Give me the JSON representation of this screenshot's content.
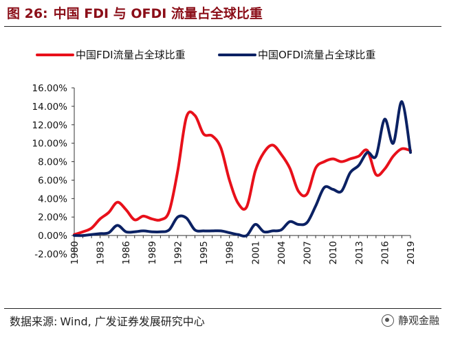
{
  "figure": {
    "label": "图 26:",
    "title": "中国 FDI 与 OFDI 流量占全球比重"
  },
  "source": {
    "prefix": "数据来源:",
    "text": "Wind, 广发证券发展研究中心"
  },
  "watermark": "静观金融",
  "colors": {
    "fdi": "#E8101A",
    "ofdi": "#0B2163",
    "title": "#8B0E18"
  },
  "chart_data": {
    "type": "line",
    "title": "中国 FDI 与 OFDI 流量占全球比重",
    "xlabel": "",
    "ylabel": "",
    "ylim": [
      -2,
      16
    ],
    "yticks": [
      "-2.00%",
      "0.00%",
      "2.00%",
      "4.00%",
      "6.00%",
      "8.00%",
      "10.00%",
      "12.00%",
      "14.00%",
      "16.00%"
    ],
    "xticks": [
      "1980",
      "1983",
      "1986",
      "1989",
      "1992",
      "1995",
      "1998",
      "2001",
      "2004",
      "2007",
      "2010",
      "2013",
      "2016",
      "2019"
    ],
    "x": [
      1980,
      1981,
      1982,
      1983,
      1984,
      1985,
      1986,
      1987,
      1988,
      1989,
      1990,
      1991,
      1992,
      1993,
      1994,
      1995,
      1996,
      1997,
      1998,
      1999,
      2000,
      2001,
      2002,
      2003,
      2004,
      2005,
      2006,
      2007,
      2008,
      2009,
      2010,
      2011,
      2012,
      2013,
      2014,
      2015,
      2016,
      2017,
      2018,
      2019
    ],
    "series": [
      {
        "name": "中国FDI流量占全球比重",
        "color": "#E8101A",
        "values": [
          0.1,
          0.4,
          0.8,
          1.8,
          2.5,
          3.6,
          2.8,
          1.7,
          2.1,
          1.8,
          1.7,
          2.6,
          7.0,
          12.8,
          13.0,
          11.0,
          10.8,
          9.5,
          6.0,
          3.5,
          3.1,
          7.0,
          9.0,
          9.8,
          8.8,
          7.3,
          4.8,
          4.5,
          7.3,
          8.0,
          8.3,
          8.0,
          8.3,
          8.6,
          9.2,
          6.6,
          7.2,
          8.6,
          9.4,
          9.2
        ]
      },
      {
        "name": "中国OFDI流量占全球比重",
        "color": "#0B2163",
        "values": [
          0.0,
          0.0,
          0.1,
          0.2,
          0.3,
          1.1,
          0.4,
          0.4,
          0.5,
          0.4,
          0.4,
          0.6,
          2.0,
          1.9,
          0.6,
          0.5,
          0.5,
          0.5,
          0.3,
          0.1,
          0.0,
          1.2,
          0.4,
          0.5,
          0.6,
          1.5,
          1.2,
          1.4,
          3.2,
          5.2,
          5.0,
          4.8,
          6.8,
          7.6,
          9.0,
          8.6,
          12.6,
          10.0,
          14.5,
          9.0
        ]
      }
    ],
    "legend": "top"
  }
}
